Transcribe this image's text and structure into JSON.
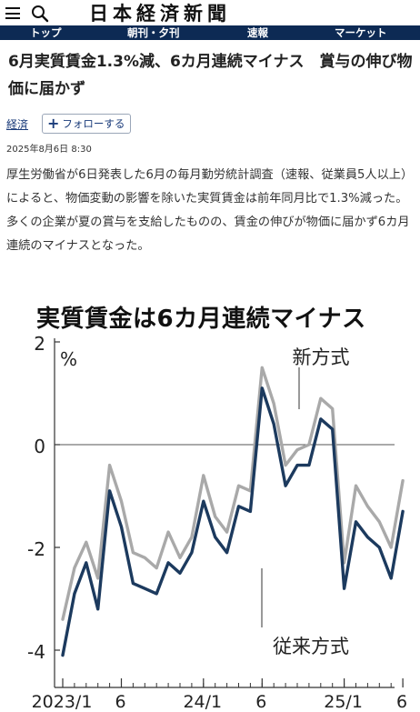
{
  "header": {
    "logo_text": "日本経済新聞",
    "icons": [
      "menu-icon",
      "search-icon"
    ]
  },
  "nav": {
    "items": [
      {
        "label": "トップ"
      },
      {
        "label": "朝刊・夕刊"
      },
      {
        "label": "速報"
      },
      {
        "label": "マーケット"
      }
    ]
  },
  "article": {
    "title": "6月実質賃金1.3%減、6カ月連続マイナス　賞与の伸び物価に届かず",
    "tag": "経済",
    "follow_label": "フォローする",
    "date": "2025年8月6日 8:30",
    "body": "厚生労働省が6日発表した6月の毎月勤労統計調査（速報、従業員5人以上）によると、物価変動の影響を除いた実質賃金は前年同月比で1.3%減った。多くの企業が夏の賞与を支給したものの、賃金の伸びが物価に届かず6カ月連続のマイナスとなった。"
  },
  "chart_data": {
    "type": "line",
    "title": "実質賃金は6カ月連続マイナス",
    "ylabel": "%",
    "ylim": [
      -4.6,
      2
    ],
    "yticks": [
      2,
      0,
      -2,
      -4
    ],
    "xtick_labels": [
      {
        "label": "2023/1",
        "index": 0
      },
      {
        "label": "6",
        "index": 5
      },
      {
        "label": "24/1",
        "index": 12
      },
      {
        "label": "6",
        "index": 17
      },
      {
        "label": "25/1",
        "index": 24
      },
      {
        "label": "6",
        "index": 29
      }
    ],
    "grid": false,
    "zero_line": true,
    "series": [
      {
        "name": "新方式",
        "color": "#a9a9a9",
        "values": [
          -3.4,
          -2.4,
          -1.9,
          -2.6,
          -0.4,
          -1.1,
          -2.1,
          -2.2,
          -2.4,
          -1.7,
          -2.2,
          -1.8,
          -0.6,
          -1.4,
          -1.7,
          -0.8,
          -0.9,
          1.5,
          0.8,
          -0.4,
          -0.1,
          0.0,
          0.9,
          0.7,
          -2.3,
          -0.8,
          -1.2,
          -1.5,
          -2.0,
          -0.7
        ]
      },
      {
        "name": "従来方式",
        "color": "#1c3a5e",
        "values": [
          -4.1,
          -2.9,
          -2.3,
          -3.2,
          -0.9,
          -1.6,
          -2.7,
          -2.8,
          -2.9,
          -2.3,
          -2.5,
          -2.1,
          -1.1,
          -1.8,
          -2.1,
          -1.2,
          -1.3,
          1.1,
          0.4,
          -0.8,
          -0.4,
          -0.4,
          0.5,
          0.3,
          -2.8,
          -1.5,
          -1.8,
          -2.0,
          -2.6,
          -1.3
        ]
      }
    ]
  }
}
